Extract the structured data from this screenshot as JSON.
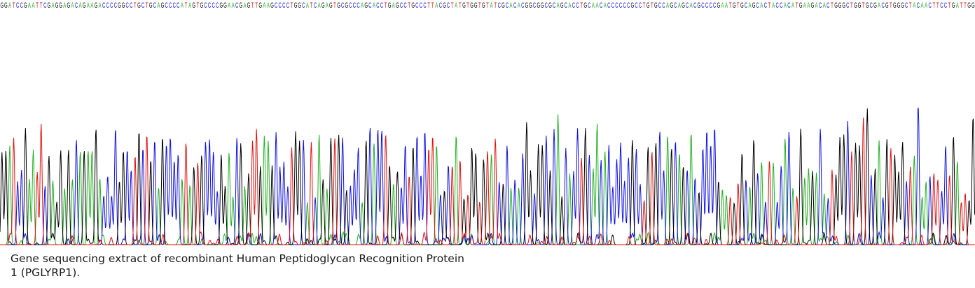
{
  "chart_data": {
    "type": "line",
    "title": "",
    "xlabel": "",
    "ylabel": "",
    "grid": false,
    "legend": "none",
    "sequence": "GGATCCGAATTCGAGGAGACAGAAGACCCCGGCCTGCTGCAGCCCCATAGTGCCCCGGAACGAGTTGAAGCCCCTGGCATCAGAGTGCGCCCAGCACCTGAGCCTGCCCTTACGCTATGTGGTGTATCGCACACGGCGGCGCAGCACCTGCAACACCCCCCGCCTGTGCCAGCAGCACGCCCCGAATGTGCAGCACTACCACATGAAGACACTGGGCTGGTGCGACGTGGGCTACAACTTCCTGATTGG",
    "base_colors": {
      "A": "#22b022",
      "C": "#1010e0",
      "G": "#000000",
      "T": "#e01010"
    }
  },
  "caption": "Gene sequencing extract of recombinant Human Peptidoglycan Recognition Protein 1 (PGLYRP1)."
}
